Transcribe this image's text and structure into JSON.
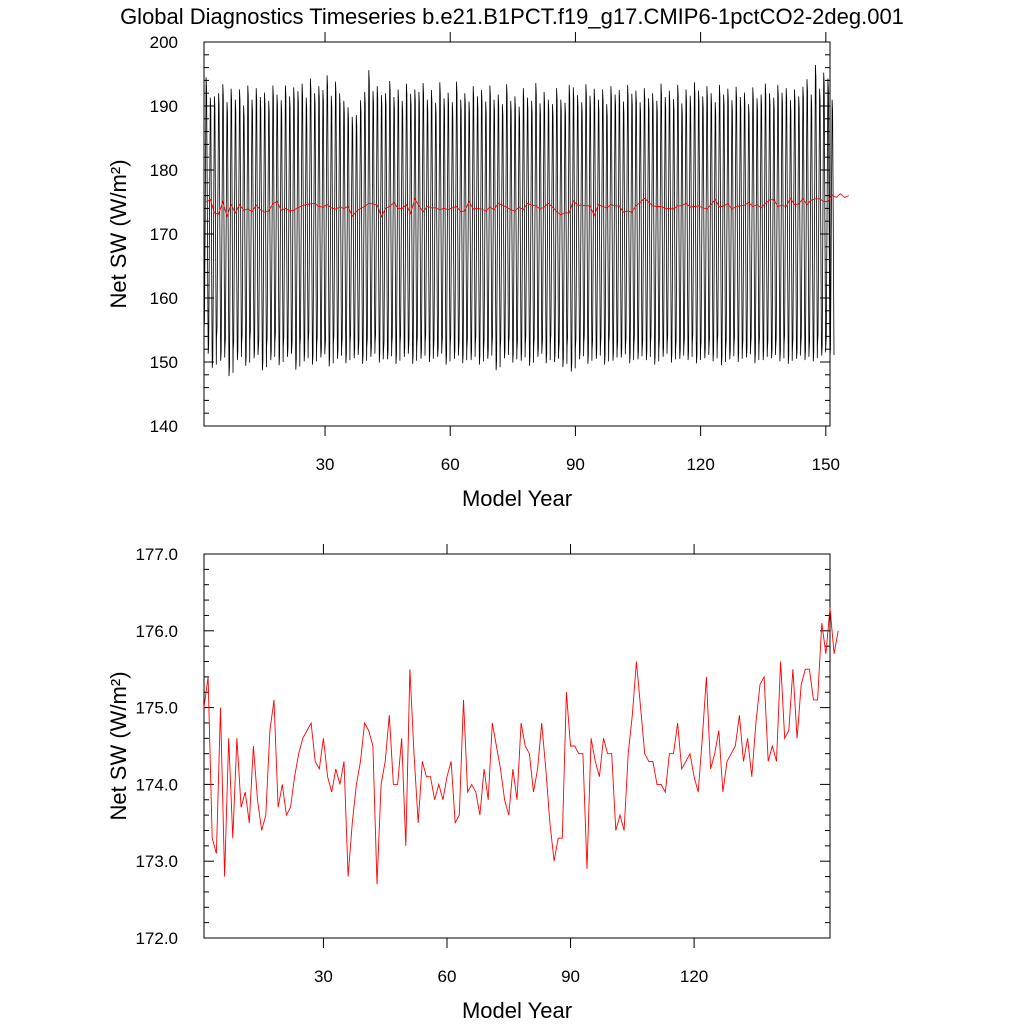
{
  "title": "Global Diagnostics Timeseries b.e21.B1PCT.f19_g17.CMIP6-1pctCO2-2deg.001",
  "colors": {
    "monthly": "#000000",
    "annual": "#ff0000",
    "axes": "#000000"
  },
  "chart_data": [
    {
      "type": "line",
      "xlabel": "Model Year",
      "ylabel": "Net SW (W/m²)",
      "xlim": [
        1,
        151
      ],
      "ylim": [
        140,
        200
      ],
      "xticks": [
        30,
        60,
        90,
        120,
        150
      ],
      "xtick_labels": [
        "30",
        "60",
        "90",
        "120",
        "150"
      ],
      "yticks": [
        140,
        150,
        160,
        170,
        180,
        190,
        200
      ],
      "ytick_labels": [
        "140",
        "150",
        "160",
        "170",
        "180",
        "190",
        "200"
      ],
      "grid": false,
      "series": [
        {
          "style": "monthly seasonal cycle",
          "annual_max": [
            194.5,
            191.3,
            191.5,
            192.0,
            193.4,
            190.6,
            192.7,
            191.0,
            192.6,
            190.1,
            193.2,
            191.0,
            192.8,
            191.4,
            192.1,
            190.8,
            193.2,
            191.8,
            190.9,
            193.2,
            191.5,
            192.9,
            192.3,
            193.5,
            191.3,
            194.3,
            192.0,
            193.1,
            192.5,
            194.8,
            191.6,
            193.8,
            192.0,
            190.8,
            189.8,
            188.3,
            188.6,
            190.9,
            192.2,
            195.6,
            192.3,
            193.1,
            191.7,
            192.0,
            193.9,
            191.4,
            192.6,
            190.8,
            193.5,
            191.9,
            192.6,
            192.2,
            193.6,
            191.0,
            192.5,
            190.5,
            193.7,
            191.2,
            192.1,
            190.6,
            193.8,
            191.0,
            192.0,
            190.7,
            193.1,
            191.5,
            192.5,
            190.7,
            193.2,
            191.0,
            191.8,
            190.3,
            193.4,
            190.8,
            191.5,
            189.9,
            192.8,
            191.3,
            190.8,
            193.6,
            190.4,
            192.2,
            191.0,
            190.3,
            192.8,
            191.0,
            190.5,
            193.3,
            192.9,
            191.7,
            190.6,
            193.4,
            191.6,
            192.7,
            191.0,
            192.6,
            190.3,
            193.1,
            191.8,
            192.5,
            190.7,
            193.3,
            191.9,
            192.4,
            190.6,
            192.8,
            191.2,
            192.0,
            190.8,
            193.5,
            191.4,
            192.4,
            191.1,
            193.3,
            190.4,
            192.6,
            191.6,
            193.7,
            192.4,
            191.5,
            193.1,
            192.0,
            190.6,
            193.3,
            191.8,
            192.7,
            190.9,
            193.0,
            191.4,
            192.1,
            190.3,
            192.9,
            191.2,
            191.8,
            193.5,
            192.0,
            191.3,
            193.3,
            192.1,
            192.8,
            190.9,
            192.6,
            191.5,
            193.0,
            194.2,
            191.8,
            196.4,
            192.7,
            195.2,
            194.3,
            191.0
          ],
          "annual_min": [
            155.0,
            151.3,
            149.1,
            153.8,
            150.2,
            152.1,
            147.8,
            151.9,
            150.3,
            152.7,
            149.4,
            153.4,
            150.6,
            152.0,
            148.7,
            152.3,
            150.3,
            153.0,
            149.5,
            152.4,
            150.8,
            151.7,
            148.8,
            152.6,
            150.1,
            153.2,
            149.6,
            152.5,
            150.7,
            151.9,
            149.3,
            152.8,
            150.5,
            152.2,
            149.8,
            152.9,
            150.6,
            151.7,
            149.7,
            152.3,
            150.8,
            152.9,
            149.9,
            151.6,
            150.4,
            152.5,
            149.7,
            152.8,
            150.8,
            151.9,
            149.7,
            152.4,
            150.5,
            152.9,
            150.0,
            151.8,
            150.8,
            152.3,
            149.6,
            152.5,
            150.5,
            151.8,
            149.8,
            152.2,
            150.3,
            152.6,
            149.6,
            151.9,
            150.5,
            152.5,
            148.7,
            152.2,
            150.6,
            152.7,
            149.9,
            151.9,
            150.2,
            152.6,
            149.4,
            152.3,
            150.8,
            152.0,
            149.8,
            152.8,
            150.0,
            151.6,
            149.2,
            152.5,
            148.5,
            152.1,
            150.4,
            152.8,
            149.7,
            151.9,
            150.5,
            152.4,
            149.6,
            152.9,
            150.2,
            151.8,
            150.7,
            152.3,
            149.8,
            152.6,
            150.4,
            151.9,
            150.3,
            152.6,
            149.6,
            152.0,
            150.8,
            152.7,
            149.9,
            151.8,
            150.5,
            152.3,
            150.3,
            152.9,
            149.8,
            151.7,
            150.6,
            152.2,
            150.1,
            152.8,
            149.5,
            151.9,
            150.4,
            152.5,
            150.0,
            151.8,
            150.7,
            152.4,
            149.8,
            152.7,
            150.3,
            151.9,
            150.6,
            152.2,
            150.1,
            152.8,
            149.7,
            151.9,
            150.5,
            152.4,
            150.3,
            151.8,
            150.1,
            152.7,
            151.0,
            152.3,
            150.6
          ]
        },
        {
          "style": "annual mean",
          "values": [
            175.0,
            175.4,
            173.3,
            173.1,
            175.0,
            172.8,
            174.6,
            173.3,
            174.6,
            173.7,
            173.9,
            173.5,
            174.5,
            173.8,
            173.4,
            173.6,
            174.7,
            175.1,
            173.7,
            174.0,
            173.6,
            173.7,
            174.1,
            174.4,
            174.6,
            174.7,
            174.8,
            174.3,
            174.2,
            174.6,
            174.1,
            173.9,
            174.2,
            174.0,
            174.3,
            172.8,
            173.5,
            174.0,
            174.3,
            174.8,
            174.7,
            174.5,
            172.7,
            174.0,
            174.3,
            174.9,
            174.0,
            174.0,
            174.6,
            173.2,
            175.5,
            174.4,
            173.5,
            174.3,
            174.1,
            174.1,
            173.8,
            174.0,
            173.8,
            174.1,
            174.3,
            173.5,
            173.6,
            175.1,
            173.9,
            174.0,
            173.9,
            173.6,
            174.2,
            173.8,
            174.8,
            174.5,
            174.2,
            173.8,
            173.6,
            174.2,
            173.8,
            174.8,
            174.5,
            174.4,
            173.9,
            174.2,
            174.8,
            174.2,
            173.5,
            173.0,
            173.3,
            173.3,
            175.2,
            174.5,
            174.5,
            174.4,
            174.4,
            172.9,
            174.6,
            174.3,
            174.1,
            174.6,
            174.4,
            174.4,
            173.4,
            173.6,
            173.4,
            174.4,
            174.9,
            175.6,
            175.0,
            174.4,
            174.3,
            174.3,
            174.0,
            174.0,
            173.9,
            174.4,
            174.4,
            174.8,
            174.2,
            174.3,
            174.4,
            174.1,
            173.9,
            174.6,
            175.4,
            174.2,
            174.4,
            174.7,
            173.9,
            174.3,
            174.4,
            174.5,
            174.9,
            174.3,
            174.6,
            174.1,
            174.8,
            175.3,
            175.4,
            174.3,
            174.5,
            174.3,
            175.6,
            174.6,
            174.7,
            175.5,
            174.6,
            175.3,
            175.5,
            175.5,
            175.1,
            175.1,
            176.1,
            175.7,
            176.3,
            175.7,
            176.0
          ]
        }
      ]
    },
    {
      "type": "line",
      "xlabel": "Model Year",
      "ylabel": "Net SW (W/m²)",
      "xlim": [
        1,
        153
      ],
      "ylim": [
        172.0,
        177.0
      ],
      "xticks": [
        30,
        60,
        90,
        120
      ],
      "xtick_labels": [
        "30",
        "60",
        "90",
        "120"
      ],
      "yticks": [
        172.0,
        173.0,
        174.0,
        175.0,
        176.0,
        177.0
      ],
      "ytick_labels": [
        "172.0",
        "173.0",
        "174.0",
        "175.0",
        "176.0",
        "177.0"
      ],
      "grid": false,
      "series_ref": "annual mean from panel 1"
    }
  ]
}
